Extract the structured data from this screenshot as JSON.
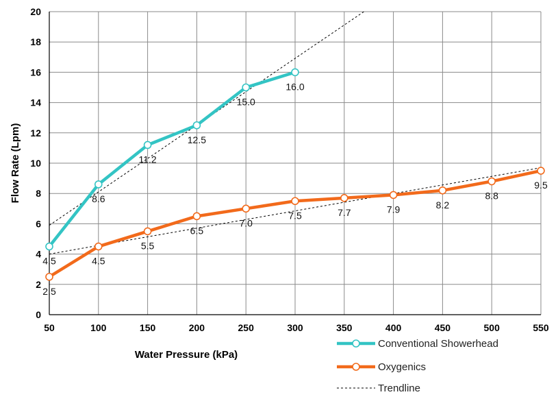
{
  "chart_data": {
    "type": "line",
    "title": "",
    "xlabel": "Water Pressure (kPa)",
    "ylabel": "Flow Rate (Lpm)",
    "xlim": [
      50,
      550
    ],
    "ylim": [
      0,
      20
    ],
    "x_ticks": [
      50,
      100,
      150,
      200,
      250,
      300,
      350,
      400,
      450,
      500,
      550
    ],
    "y_ticks": [
      0,
      2,
      4,
      6,
      8,
      10,
      12,
      14,
      16,
      18,
      20
    ],
    "grid": true,
    "legend_position": "bottom-right",
    "series": [
      {
        "name": "Conventional Showerhead",
        "color": "#33c4c4",
        "marker": "open-circle",
        "x": [
          50,
          100,
          150,
          200,
          250,
          300
        ],
        "values": [
          4.5,
          8.6,
          11.2,
          12.5,
          15.0,
          16.0
        ],
        "data_labels": [
          "4.5",
          "8.6",
          "11.2",
          "12.5",
          "15.0",
          "16.0"
        ]
      },
      {
        "name": "Oxygenics",
        "color": "#f26a1b",
        "marker": "open-circle",
        "x": [
          50,
          100,
          150,
          200,
          250,
          300,
          350,
          400,
          450,
          500,
          550
        ],
        "values": [
          2.5,
          4.5,
          5.5,
          6.5,
          7.0,
          7.5,
          7.7,
          7.9,
          8.2,
          8.8,
          9.5
        ],
        "data_labels": [
          "2.5",
          "4.5",
          "5.5",
          "6.5",
          "7.0",
          "7.5",
          "7.7",
          "7.9",
          "8.2",
          "8.8",
          "9.5"
        ]
      }
    ],
    "trendlines": [
      {
        "name": "Trendline",
        "color": "#000000",
        "style": "dashed",
        "x": [
          50,
          370
        ],
        "values": [
          5.9,
          20
        ]
      },
      {
        "name": "Trendline",
        "color": "#000000",
        "style": "dashed",
        "x": [
          50,
          550
        ],
        "values": [
          4.0,
          9.7
        ]
      }
    ],
    "legend": [
      {
        "label": "Conventional Showerhead",
        "color": "#33c4c4",
        "style": "line-marker"
      },
      {
        "label": "Oxygenics",
        "color": "#f26a1b",
        "style": "line-marker"
      },
      {
        "label": "Trendline",
        "color": "#000000",
        "style": "dashed"
      }
    ]
  }
}
